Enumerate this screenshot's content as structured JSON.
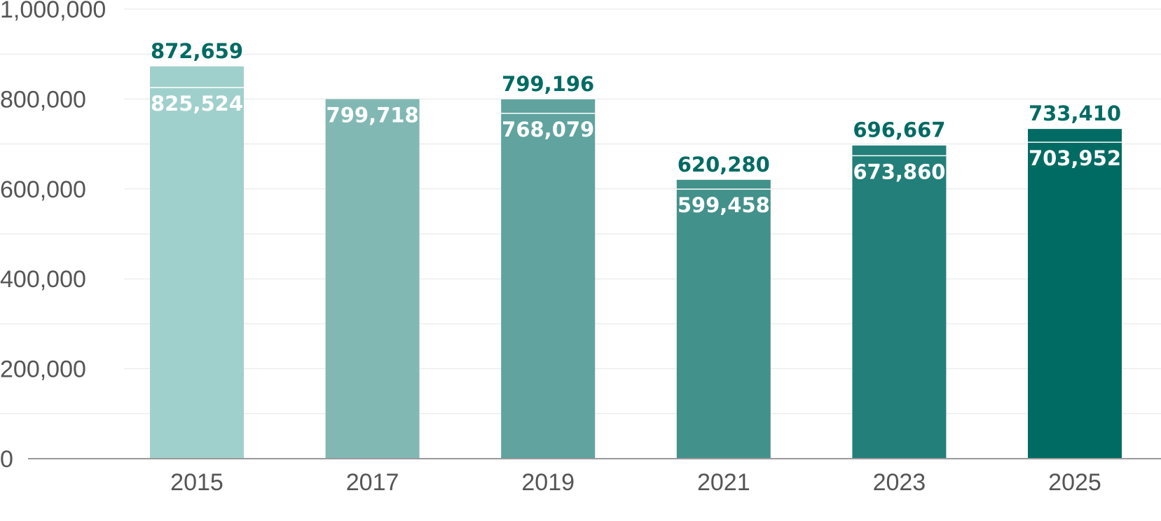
{
  "chart_data": {
    "type": "bar",
    "categories": [
      "2015",
      "2017",
      "2019",
      "2021",
      "2023",
      "2025"
    ],
    "series": [
      {
        "values": [
          872659,
          799718,
          799196,
          620280,
          696667,
          733410
        ]
      },
      {
        "values": [
          825524,
          null,
          768079,
          599458,
          673860,
          703952
        ]
      }
    ],
    "total_labels": [
      "872,659",
      "",
      "799,196",
      "620,280",
      "696,667",
      "733,410"
    ],
    "inner_labels": [
      "825,524",
      "799,718",
      "768,079",
      "599,458",
      "673,860",
      "703,952"
    ],
    "ylim": [
      0,
      1000000
    ],
    "y_ticks": [
      0,
      200000,
      400000,
      600000,
      800000,
      1000000
    ],
    "y_tick_labels": [
      "0",
      "200,000",
      "400,000",
      "600,000",
      "800,000",
      "1,000,000"
    ],
    "grid": true,
    "bar_colors": [
      "#a0d0cb",
      "#82b8b3",
      "#60a39f",
      "#43918b",
      "#237f7a",
      "#006b63"
    ],
    "label_color": "#006b63",
    "title": "",
    "xlabel": "",
    "ylabel": ""
  }
}
